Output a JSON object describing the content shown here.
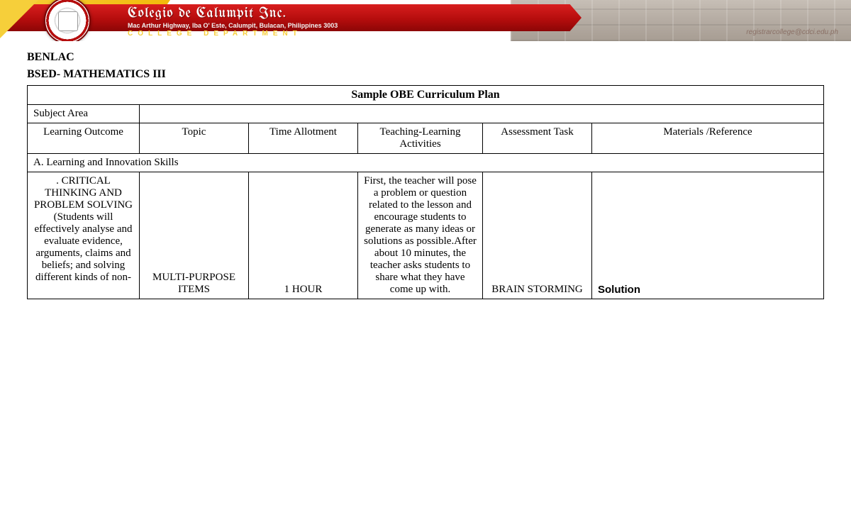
{
  "banner": {
    "institution_name": "Colegio de Calumpit Inc.",
    "address_line": "Mac Arthur Highway, Iba O' Este, Calumpit, Bulacan, Philippines 3003",
    "department_line": "COLLEGE   DEPARTMENT",
    "email": "registrarcollege@cdci.edu.ph",
    "colors": {
      "red": "#b50d0d",
      "yellow": "#f6cf3a",
      "white": "#ffffff"
    }
  },
  "document": {
    "course_code": "BENLAC",
    "program": "BSED- MATHEMATICS III",
    "table_title": "Sample OBE Curriculum Plan",
    "subject_area_label": "Subject Area",
    "headers": {
      "learning_outcome": "Learning Outcome",
      "topic": "Topic",
      "time_allotment": "Time Allotment",
      "activities": "Teaching-Learning Activities",
      "assessment": "Assessment Task",
      "materials": "Materials /Reference"
    },
    "section_label": "A. Learning and Innovation Skills",
    "row1": {
      "learning_outcome": ". CRITICAL THINKING AND PROBLEM SOLVING (Students will effectively analyse and evaluate evidence, arguments, claims and beliefs; and solving different kinds of non-",
      "topic": "MULTI-PURPOSE ITEMS",
      "time": "1 HOUR",
      "activities": "First, the teacher will pose a problem or question related to the lesson and encourage students to generate as many ideas or solutions as possible.After about 10 minutes, the teacher asks students to share what they have come up with.",
      "assessment": "BRAIN STORMING",
      "materials": "Solution"
    }
  }
}
